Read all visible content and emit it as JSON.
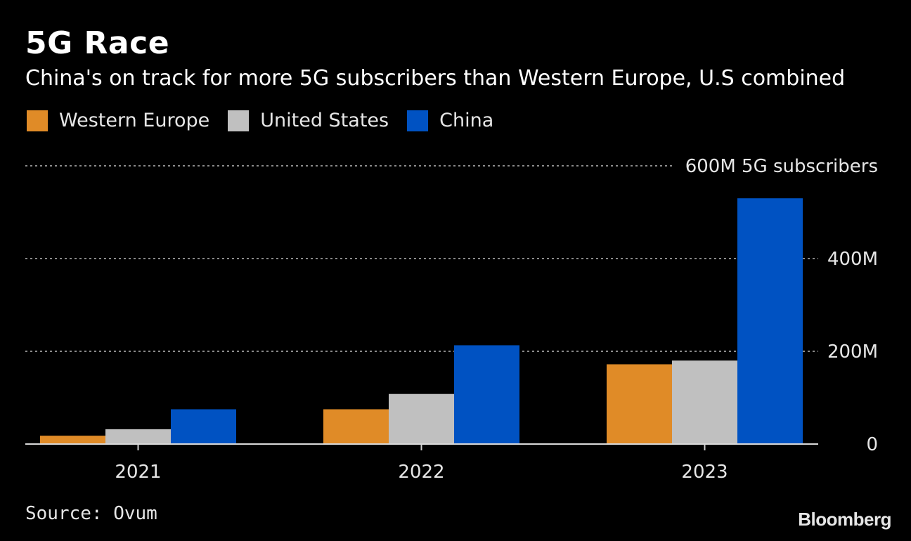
{
  "header": {
    "title": "5G Race",
    "subtitle": "China's on track for more 5G subscribers than Western Europe, U.S combined"
  },
  "footer": {
    "source": "Source: Ovum",
    "brand": "Bloomberg"
  },
  "colors": {
    "background": "#000000",
    "western_europe": "#e08b27",
    "united_states": "#c0c0c0",
    "china": "#0052c2",
    "gridline": "#8a8a8a"
  },
  "chart_data": {
    "type": "bar",
    "title": "5G Race",
    "subtitle": "China's on track for more 5G subscribers than Western Europe, U.S combined",
    "categories": [
      "2021",
      "2022",
      "2023"
    ],
    "series": [
      {
        "name": "Western Europe",
        "color": "#e08b27",
        "values": [
          18,
          75,
          172
        ]
      },
      {
        "name": "United States",
        "color": "#c0c0c0",
        "values": [
          32,
          108,
          180
        ]
      },
      {
        "name": "China",
        "color": "#0052c2",
        "values": [
          75,
          213,
          530
        ]
      }
    ],
    "yticks": [
      {
        "value": 0,
        "label": "0"
      },
      {
        "value": 200,
        "label": "200M"
      },
      {
        "value": 400,
        "label": "400M"
      },
      {
        "value": 600,
        "label": "600M 5G subscribers"
      }
    ],
    "ylim": [
      0,
      600
    ],
    "ylabel": "",
    "xlabel": "",
    "grid": "dotted horizontal",
    "y_axis_position": "right",
    "legend_position": "top-left"
  }
}
